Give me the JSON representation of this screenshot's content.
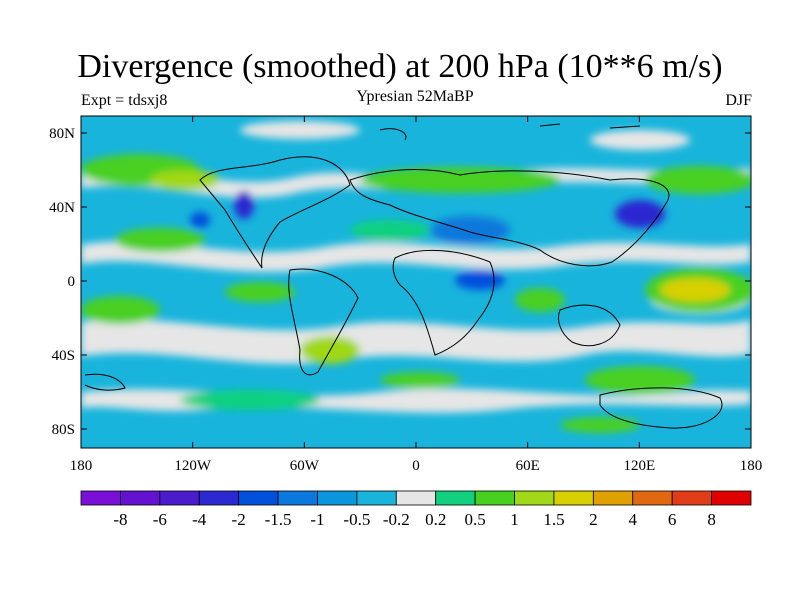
{
  "title": "Divergence (smoothed) at 200 hPa (10**6 m/s)",
  "subtitle": "Ypresian  52MaBP",
  "left_label": "Expt = tdsxj8",
  "right_label": "DJF",
  "y_ticks": [
    "80N",
    "40N",
    "0",
    "40S",
    "80S"
  ],
  "x_ticks": [
    "180",
    "120W",
    "60W",
    "0",
    "60E",
    "120E",
    "180"
  ],
  "colorbar": {
    "colors": [
      "#7a10d8",
      "#6212d0",
      "#4a1ccc",
      "#2a28d0",
      "#0050dc",
      "#0a78dc",
      "#0a96dc",
      "#18b4dc",
      "#e6e6e6",
      "#10d080",
      "#48d020",
      "#a0d818",
      "#d8d000",
      "#e0a000",
      "#e06810",
      "#e03c18",
      "#e00000"
    ],
    "labels": [
      "-8",
      "-6",
      "-4",
      "-2",
      "-1.5",
      "-1",
      "-0.5",
      "-0.2",
      "0.2",
      "0.5",
      "1",
      "1.5",
      "2",
      "4",
      "6",
      "8"
    ]
  },
  "map": {
    "background_color": "#18b4dc",
    "positive_color": "#48d020",
    "neutral_color": "#e6e6e6",
    "strong_negative_color": "#2a28d0",
    "strong_positive_color": "#d8d000"
  }
}
